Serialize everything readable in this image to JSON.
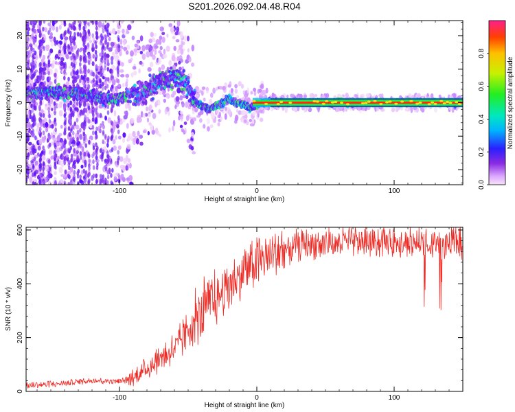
{
  "figure_title": "S201.2026.092.04.48.R04",
  "colors": {
    "snr_line": "#ee2a24",
    "axis": "#000000",
    "ridge": "#ff2a10"
  },
  "chart_data": [
    {
      "type": "heatmap",
      "title": "S201.2026.092.04.48.R04",
      "xlabel": "Height of straight line (km)",
      "ylabel": "Frequency (Hz)",
      "xlim": [
        -168,
        150
      ],
      "ylim": [
        -24.5,
        24.5
      ],
      "xticks": [
        -100,
        0,
        100
      ],
      "yticks": [
        -20,
        -10,
        0,
        10,
        20
      ],
      "colorbar": {
        "label": "Normalized spectral amplitude",
        "range": [
          0,
          1
        ],
        "ticks": [
          0.0,
          0.2,
          0.4,
          0.6,
          0.8
        ]
      },
      "ridge": {
        "x": [
          -168,
          -150,
          -135,
          -120,
          -105,
          -95,
          -85,
          -75,
          -65,
          -58,
          -52,
          -48,
          -44,
          -40,
          -35,
          -30,
          -25,
          -20,
          -15,
          -10,
          -5,
          0,
          5,
          10,
          30,
          60,
          100,
          150
        ],
        "freq": [
          3,
          3,
          3,
          2,
          1,
          2,
          3,
          5,
          7,
          8,
          6,
          2,
          0,
          -1,
          -2,
          -1,
          0,
          1,
          0,
          -0.5,
          -1.5,
          -0.5,
          0,
          0,
          0,
          0,
          0,
          0
        ]
      }
    },
    {
      "type": "line",
      "xlabel": "Height of straight line (km)",
      "ylabel": "SNR (10 * v/v)",
      "xlim": [
        -168,
        150
      ],
      "ylim": [
        0,
        610
      ],
      "xticks": [
        -100,
        0,
        100
      ],
      "yticks": [
        0,
        200,
        400,
        600
      ],
      "series": [
        {
          "name": "SNR",
          "x": [
            -168,
            -140,
            -120,
            -100,
            -90,
            -80,
            -70,
            -60,
            -50,
            -40,
            -30,
            -20,
            -10,
            0,
            10,
            20,
            30,
            40,
            60,
            80,
            100,
            110,
            120,
            130,
            140,
            150
          ],
          "y": [
            20,
            30,
            40,
            35,
            50,
            80,
            120,
            150,
            220,
            280,
            330,
            380,
            440,
            475,
            500,
            520,
            540,
            545,
            550,
            550,
            555,
            555,
            545,
            540,
            545,
            550
          ]
        }
      ]
    }
  ]
}
